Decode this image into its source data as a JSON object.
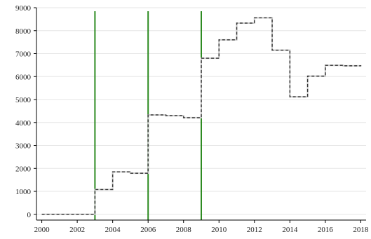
{
  "chart_data": {
    "type": "line",
    "step": true,
    "title": "",
    "xlabel": "",
    "ylabel": "",
    "xlim": [
      1999.7,
      2018.3
    ],
    "ylim": [
      -250,
      9000
    ],
    "xticks": [
      2000,
      2002,
      2004,
      2006,
      2008,
      2010,
      2012,
      2014,
      2016,
      2018
    ],
    "yticks": [
      0,
      1000,
      2000,
      3000,
      4000,
      5000,
      6000,
      7000,
      8000,
      9000
    ],
    "grid": true,
    "legend": "none",
    "series": [
      {
        "x": [
          2000,
          2001,
          2002,
          2003,
          2004,
          2005,
          2006,
          2007,
          2008,
          2009,
          2010,
          2011,
          2012,
          2013,
          2014,
          2015,
          2016,
          2017,
          2018
        ],
        "y": [
          0,
          0,
          0,
          1080,
          1850,
          1790,
          4330,
          4300,
          4210,
          6800,
          7600,
          8330,
          8560,
          7150,
          5120,
          6020,
          6490,
          6470,
          6450
        ],
        "color": "#333333"
      }
    ],
    "vertical_lines": [
      {
        "x": 2003,
        "color": "#2e8b22"
      },
      {
        "x": 2006,
        "color": "#2e8b22"
      },
      {
        "x": 2009,
        "color": "#2e8b22"
      }
    ]
  }
}
